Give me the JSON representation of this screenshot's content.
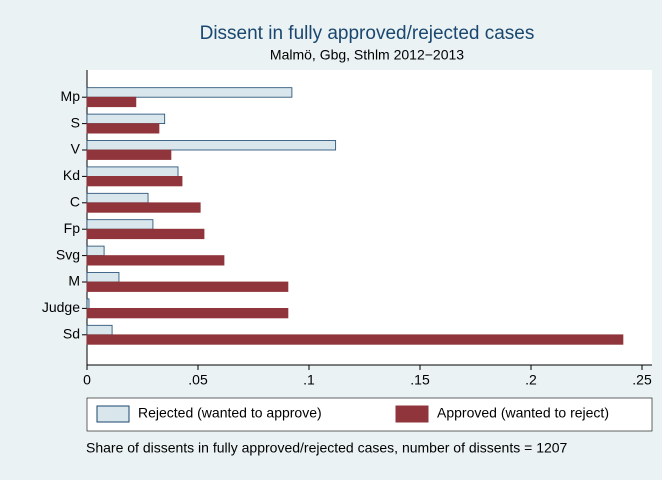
{
  "chart_data": {
    "type": "bar",
    "orientation": "horizontal",
    "title": "Dissent in fully approved/rejected cases",
    "subtitle": "Malmö, Gbg, Sthlm 2012−2013",
    "note": "Share of dissents in fully approved/rejected cases, number of dissents = 1207",
    "categories": [
      "Mp",
      "S",
      "V",
      "Kd",
      "C",
      "Fp",
      "Svg",
      "M",
      "Judge",
      "Sd"
    ],
    "series": [
      {
        "name": "Rejected (wanted to approve)",
        "color": "#d9e6eb",
        "values": [
          0.0923,
          0.035,
          0.112,
          0.041,
          0.0275,
          0.0297,
          0.0077,
          0.0144,
          0.0009,
          0.0113
        ]
      },
      {
        "name": "Approved (wanted to reject)",
        "color": "#90353b",
        "values": [
          0.022,
          0.0324,
          0.0378,
          0.0428,
          0.051,
          0.0527,
          0.0617,
          0.0905,
          0.0905,
          0.2414
        ]
      }
    ],
    "xlim": [
      0,
      0.2545
    ],
    "xticks": [
      0,
      {
        "value": 0.05,
        "label": ".05"
      },
      {
        "value": 0.1,
        "label": ".1"
      },
      {
        "value": 0.15,
        "label": ".15"
      },
      {
        "value": 0.2,
        "label": ".2"
      },
      {
        "value": 0.25,
        "label": ".25"
      }
    ],
    "grid": false,
    "legend": "bottom"
  }
}
